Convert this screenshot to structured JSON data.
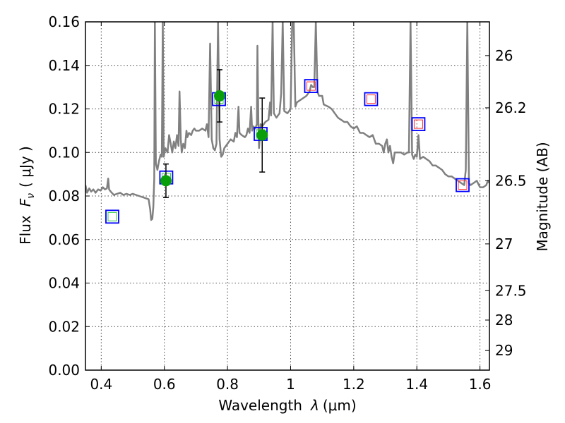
{
  "chart_data": {
    "type": "line",
    "xlabel": "Wavelength",
    "xlabel_symbol": "λ",
    "xlabel_unit": "(μm)",
    "ylabel": "Flux",
    "ylabel_symbol": "F",
    "ylabel_subscript": "ν",
    "ylabel_unit": "( μJy )",
    "y2label": "Magnitude (AB)",
    "xlim": [
      0.35,
      1.63
    ],
    "ylim": [
      0.0,
      0.16
    ],
    "grid": true,
    "x_ticks": [
      {
        "value": 0.4,
        "label": "0.4"
      },
      {
        "value": 0.6,
        "label": "0.6"
      },
      {
        "value": 0.8,
        "label": "0.8"
      },
      {
        "value": 1.0,
        "label": "1"
      },
      {
        "value": 1.2,
        "label": "1.2"
      },
      {
        "value": 1.4,
        "label": "1.4"
      },
      {
        "value": 1.6,
        "label": "1.6"
      }
    ],
    "y_ticks": [
      {
        "value": 0.0,
        "label": "0.00"
      },
      {
        "value": 0.02,
        "label": "0.02"
      },
      {
        "value": 0.04,
        "label": "0.04"
      },
      {
        "value": 0.06,
        "label": "0.06"
      },
      {
        "value": 0.08,
        "label": "0.08"
      },
      {
        "value": 0.1,
        "label": "0.10"
      },
      {
        "value": 0.12,
        "label": "0.12"
      },
      {
        "value": 0.14,
        "label": "0.14"
      },
      {
        "value": 0.16,
        "label": "0.16"
      }
    ],
    "y2_ticks": [
      {
        "flux": 0.1445,
        "label": "26"
      },
      {
        "flux": 0.1205,
        "label": "26.2"
      },
      {
        "flux": 0.087,
        "label": "26.5"
      },
      {
        "flux": 0.058,
        "label": "27"
      },
      {
        "flux": 0.0365,
        "label": "27.5"
      },
      {
        "flux": 0.023,
        "label": "28"
      },
      {
        "flux": 0.009,
        "label": "29"
      }
    ],
    "model_sed": {
      "color": "#808080",
      "points": [
        [
          0.35,
          0.085
        ],
        [
          0.355,
          0.0815
        ],
        [
          0.362,
          0.0835
        ],
        [
          0.368,
          0.082
        ],
        [
          0.375,
          0.083
        ],
        [
          0.382,
          0.0815
        ],
        [
          0.39,
          0.083
        ],
        [
          0.398,
          0.0825
        ],
        [
          0.405,
          0.084
        ],
        [
          0.412,
          0.083
        ],
        [
          0.418,
          0.0835
        ],
        [
          0.422,
          0.088
        ],
        [
          0.425,
          0.083
        ],
        [
          0.43,
          0.082
        ],
        [
          0.44,
          0.0805
        ],
        [
          0.45,
          0.081
        ],
        [
          0.46,
          0.0815
        ],
        [
          0.47,
          0.0805
        ],
        [
          0.48,
          0.081
        ],
        [
          0.49,
          0.0805
        ],
        [
          0.5,
          0.081
        ],
        [
          0.51,
          0.0805
        ],
        [
          0.52,
          0.08
        ],
        [
          0.53,
          0.0795
        ],
        [
          0.54,
          0.079
        ],
        [
          0.55,
          0.0785
        ],
        [
          0.555,
          0.074
        ],
        [
          0.558,
          0.069
        ],
        [
          0.562,
          0.0695
        ],
        [
          0.565,
          0.075
        ],
        [
          0.568,
          0.088
        ],
        [
          0.57,
          0.16
        ],
        [
          0.573,
          0.095
        ],
        [
          0.578,
          0.092
        ],
        [
          0.583,
          0.096
        ],
        [
          0.588,
          0.099
        ],
        [
          0.592,
          0.098
        ],
        [
          0.595,
          0.16
        ],
        [
          0.598,
          0.098
        ],
        [
          0.603,
          0.102
        ],
        [
          0.61,
          0.1
        ],
        [
          0.615,
          0.108
        ],
        [
          0.62,
          0.104
        ],
        [
          0.625,
          0.1
        ],
        [
          0.63,
          0.105
        ],
        [
          0.635,
          0.102
        ],
        [
          0.64,
          0.108
        ],
        [
          0.645,
          0.103
        ],
        [
          0.648,
          0.128
        ],
        [
          0.652,
          0.106
        ],
        [
          0.655,
          0.1
        ],
        [
          0.66,
          0.104
        ],
        [
          0.665,
          0.102
        ],
        [
          0.67,
          0.11
        ],
        [
          0.673,
          0.107
        ],
        [
          0.678,
          0.109
        ],
        [
          0.685,
          0.108
        ],
        [
          0.69,
          0.11
        ],
        [
          0.695,
          0.111
        ],
        [
          0.7,
          0.11
        ],
        [
          0.71,
          0.11
        ],
        [
          0.72,
          0.111
        ],
        [
          0.73,
          0.11
        ],
        [
          0.735,
          0.113
        ],
        [
          0.74,
          0.107
        ],
        [
          0.745,
          0.15
        ],
        [
          0.75,
          0.106
        ],
        [
          0.755,
          0.102
        ],
        [
          0.76,
          0.101
        ],
        [
          0.765,
          0.104
        ],
        [
          0.77,
          0.16
        ],
        [
          0.775,
          0.106
        ],
        [
          0.78,
          0.098
        ],
        [
          0.785,
          0.099
        ],
        [
          0.79,
          0.102
        ],
        [
          0.795,
          0.103
        ],
        [
          0.8,
          0.104
        ],
        [
          0.81,
          0.106
        ],
        [
          0.82,
          0.105
        ],
        [
          0.825,
          0.109
        ],
        [
          0.83,
          0.107
        ],
        [
          0.835,
          0.121
        ],
        [
          0.838,
          0.109
        ],
        [
          0.845,
          0.108
        ],
        [
          0.855,
          0.107
        ],
        [
          0.86,
          0.108
        ],
        [
          0.865,
          0.111
        ],
        [
          0.87,
          0.109
        ],
        [
          0.875,
          0.121
        ],
        [
          0.878,
          0.11
        ],
        [
          0.882,
          0.112
        ],
        [
          0.888,
          0.111
        ],
        [
          0.893,
          0.113
        ],
        [
          0.895,
          0.149
        ],
        [
          0.898,
          0.113
        ],
        [
          0.9,
          0.102
        ],
        [
          0.905,
          0.113
        ],
        [
          0.91,
          0.112
        ],
        [
          0.92,
          0.114
        ],
        [
          0.93,
          0.115
        ],
        [
          0.935,
          0.123
        ],
        [
          0.938,
          0.117
        ],
        [
          0.943,
          0.16
        ],
        [
          0.947,
          0.118
        ],
        [
          0.955,
          0.116
        ],
        [
          0.965,
          0.118
        ],
        [
          0.97,
          0.127
        ],
        [
          0.975,
          0.16
        ],
        [
          0.98,
          0.119
        ],
        [
          0.99,
          0.118
        ],
        [
          1.0,
          0.12
        ],
        [
          1.005,
          0.16
        ],
        [
          1.01,
          0.16
        ],
        [
          1.015,
          0.121
        ],
        [
          1.02,
          0.123
        ],
        [
          1.03,
          0.124
        ],
        [
          1.04,
          0.125
        ],
        [
          1.05,
          0.126
        ],
        [
          1.06,
          0.128
        ],
        [
          1.065,
          0.131
        ],
        [
          1.07,
          0.13
        ],
        [
          1.075,
          0.13
        ],
        [
          1.08,
          0.16
        ],
        [
          1.085,
          0.128
        ],
        [
          1.09,
          0.126
        ],
        [
          1.1,
          0.126
        ],
        [
          1.105,
          0.122
        ],
        [
          1.12,
          0.121
        ],
        [
          1.13,
          0.12
        ],
        [
          1.14,
          0.118
        ],
        [
          1.15,
          0.116
        ],
        [
          1.16,
          0.115
        ],
        [
          1.17,
          0.114
        ],
        [
          1.18,
          0.114
        ],
        [
          1.19,
          0.112
        ],
        [
          1.2,
          0.111
        ],
        [
          1.21,
          0.112
        ],
        [
          1.22,
          0.109
        ],
        [
          1.23,
          0.109
        ],
        [
          1.24,
          0.108
        ],
        [
          1.25,
          0.107
        ],
        [
          1.26,
          0.108
        ],
        [
          1.265,
          0.106
        ],
        [
          1.27,
          0.104
        ],
        [
          1.28,
          0.104
        ],
        [
          1.29,
          0.103
        ],
        [
          1.295,
          0.1
        ],
        [
          1.3,
          0.104
        ],
        [
          1.305,
          0.106
        ],
        [
          1.31,
          0.1
        ],
        [
          1.315,
          0.103
        ],
        [
          1.32,
          0.098
        ],
        [
          1.325,
          0.095
        ],
        [
          1.33,
          0.1
        ],
        [
          1.34,
          0.1
        ],
        [
          1.35,
          0.1
        ],
        [
          1.36,
          0.099
        ],
        [
          1.37,
          0.1
        ],
        [
          1.375,
          0.1
        ],
        [
          1.38,
          0.16
        ],
        [
          1.385,
          0.099
        ],
        [
          1.39,
          0.097
        ],
        [
          1.395,
          0.099
        ],
        [
          1.4,
          0.098
        ],
        [
          1.405,
          0.108
        ],
        [
          1.41,
          0.097
        ],
        [
          1.42,
          0.098
        ],
        [
          1.43,
          0.097
        ],
        [
          1.44,
          0.096
        ],
        [
          1.45,
          0.094
        ],
        [
          1.46,
          0.094
        ],
        [
          1.47,
          0.093
        ],
        [
          1.48,
          0.092
        ],
        [
          1.49,
          0.09
        ],
        [
          1.5,
          0.089
        ],
        [
          1.51,
          0.089
        ],
        [
          1.52,
          0.088
        ],
        [
          1.53,
          0.087
        ],
        [
          1.54,
          0.086
        ],
        [
          1.55,
          0.085
        ],
        [
          1.555,
          0.092
        ],
        [
          1.56,
          0.16
        ],
        [
          1.565,
          0.086
        ],
        [
          1.57,
          0.085
        ],
        [
          1.58,
          0.086
        ],
        [
          1.59,
          0.087
        ],
        [
          1.6,
          0.084
        ],
        [
          1.61,
          0.084
        ],
        [
          1.62,
          0.085
        ],
        [
          1.625,
          0.087
        ],
        [
          1.63,
          0.086
        ]
      ]
    },
    "photometry": {
      "color": "#0a9e0a",
      "points": [
        {
          "x": 0.605,
          "y": 0.087,
          "err": 0.0077
        },
        {
          "x": 0.775,
          "y": 0.126,
          "err": 0.012
        },
        {
          "x": 0.91,
          "y": 0.108,
          "err": 0.017
        }
      ]
    },
    "model_bands": [
      {
        "x": 0.435,
        "y": 0.0705,
        "box_color": "#0000ff",
        "inner_color": "#2ecc40"
      },
      {
        "x": 0.606,
        "y": 0.0885,
        "box_color": "#0000ff",
        "inner_color": "#2ecc40"
      },
      {
        "x": 0.773,
        "y": 0.1245,
        "box_color": "#0000ff",
        "inner_color": "#2ecc40"
      },
      {
        "x": 0.905,
        "y": 0.1085,
        "box_color": "#0000ff",
        "inner_color": "#2ecc40"
      },
      {
        "x": 1.065,
        "y": 0.1305,
        "box_color": "#0000ff",
        "inner_color": "#ff3030"
      },
      {
        "x": 1.255,
        "y": 0.1245,
        "box_color": "#0000ff",
        "inner_color": "#ff3030"
      },
      {
        "x": 1.405,
        "y": 0.113,
        "box_color": "#0000ff",
        "inner_color": "#ff3030"
      },
      {
        "x": 1.545,
        "y": 0.085,
        "box_color": "#0000ff",
        "inner_color": "#ff3030"
      }
    ]
  }
}
